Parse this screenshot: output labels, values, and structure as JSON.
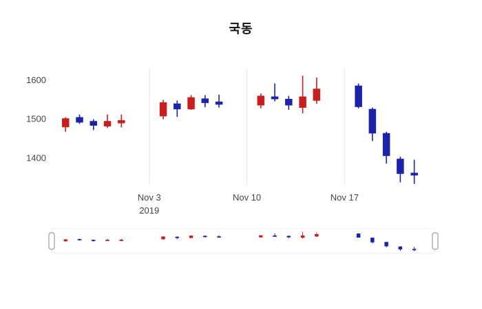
{
  "chart_data": {
    "type": "candlestick",
    "title": "국동",
    "legend": "none",
    "grid": "vertical-only",
    "rangeslider": true,
    "colors": {
      "increasing": "#c81e1e",
      "decreasing": "#1c23a6",
      "gridline": "#e3e3e3",
      "axis_text": "#444444"
    },
    "ylim": [
      1330,
      1630
    ],
    "yticks": [
      1400,
      1500,
      1600
    ],
    "xlim": [
      -1,
      26.5
    ],
    "x_gridlines": [
      {
        "x": 6,
        "label": "Nov 3",
        "sublabel": "2019"
      },
      {
        "x": 13,
        "label": "Nov 10",
        "sublabel": ""
      },
      {
        "x": 20,
        "label": "Nov 17",
        "sublabel": ""
      }
    ],
    "candles": [
      {
        "x": 0,
        "open": 1480,
        "high": 1505,
        "low": 1468,
        "close": 1502
      },
      {
        "x": 1,
        "open": 1505,
        "high": 1512,
        "low": 1488,
        "close": 1492
      },
      {
        "x": 2,
        "open": 1495,
        "high": 1500,
        "low": 1472,
        "close": 1484
      },
      {
        "x": 3,
        "open": 1482,
        "high": 1512,
        "low": 1478,
        "close": 1495
      },
      {
        "x": 4,
        "open": 1490,
        "high": 1512,
        "low": 1479,
        "close": 1497
      },
      {
        "x": 7,
        "open": 1508,
        "high": 1550,
        "low": 1500,
        "close": 1543
      },
      {
        "x": 8,
        "open": 1540,
        "high": 1548,
        "low": 1506,
        "close": 1526
      },
      {
        "x": 9,
        "open": 1526,
        "high": 1562,
        "low": 1524,
        "close": 1556
      },
      {
        "x": 10,
        "open": 1553,
        "high": 1562,
        "low": 1531,
        "close": 1542
      },
      {
        "x": 11,
        "open": 1545,
        "high": 1563,
        "low": 1530,
        "close": 1538
      },
      {
        "x": 14,
        "open": 1536,
        "high": 1566,
        "low": 1528,
        "close": 1560
      },
      {
        "x": 15,
        "open": 1558,
        "high": 1592,
        "low": 1546,
        "close": 1552
      },
      {
        "x": 16,
        "open": 1552,
        "high": 1560,
        "low": 1524,
        "close": 1536
      },
      {
        "x": 17,
        "open": 1530,
        "high": 1612,
        "low": 1515,
        "close": 1558
      },
      {
        "x": 18,
        "open": 1548,
        "high": 1607,
        "low": 1540,
        "close": 1578
      },
      {
        "x": 21,
        "open": 1586,
        "high": 1592,
        "low": 1528,
        "close": 1532
      },
      {
        "x": 22,
        "open": 1526,
        "high": 1530,
        "low": 1444,
        "close": 1464
      },
      {
        "x": 23,
        "open": 1464,
        "high": 1468,
        "low": 1386,
        "close": 1406
      },
      {
        "x": 24,
        "open": 1398,
        "high": 1404,
        "low": 1338,
        "close": 1360
      },
      {
        "x": 25,
        "open": 1362,
        "high": 1396,
        "low": 1334,
        "close": 1356
      }
    ]
  }
}
